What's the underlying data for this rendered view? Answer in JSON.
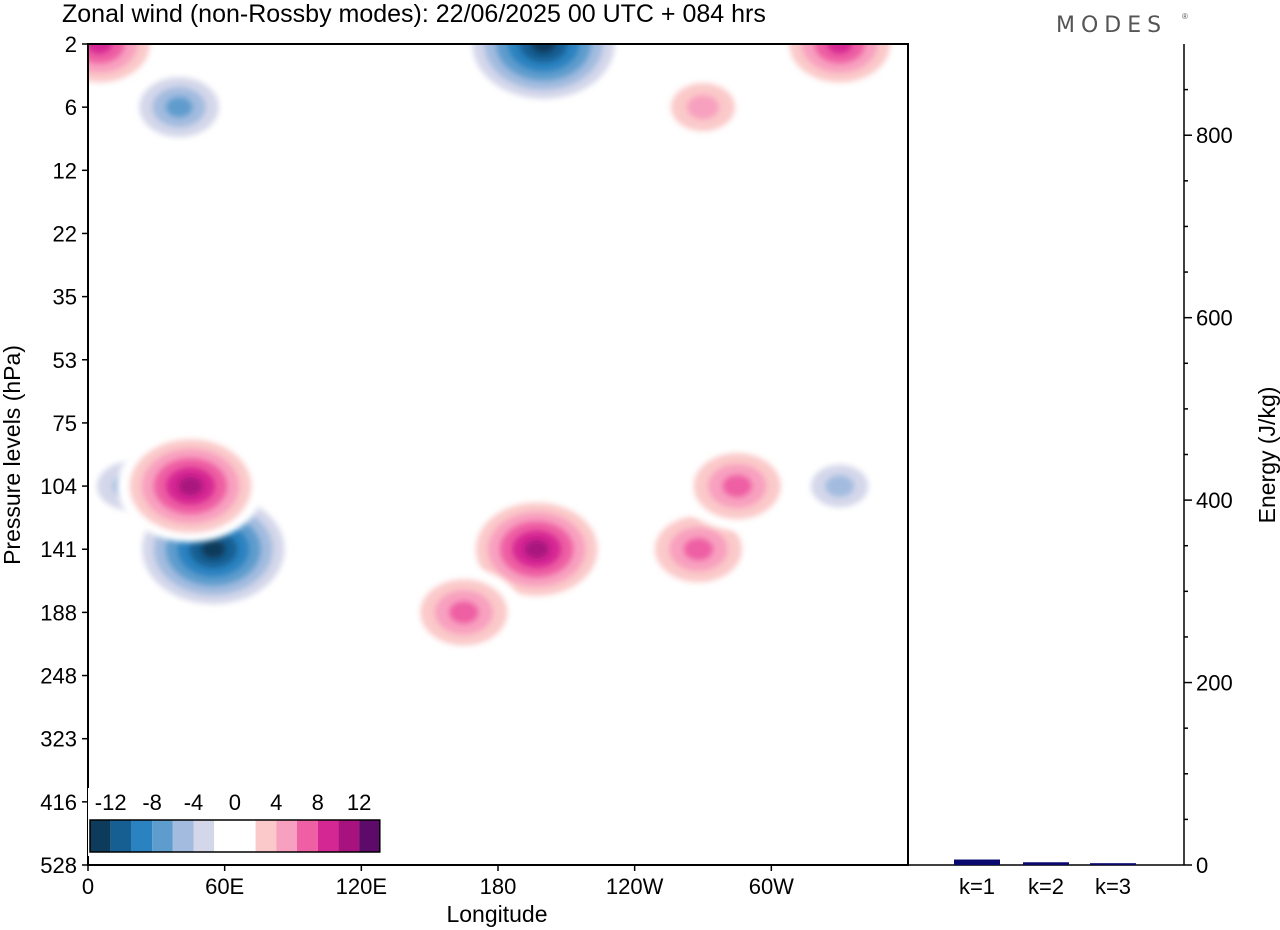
{
  "title": "Zonal wind (non-Rossby modes):  22/06/2025  00 UTC  + 084 hrs",
  "brand": "MODES",
  "chart_data": [
    {
      "type": "heatmap",
      "title": "Zonal wind (non-Rossby modes):  22/06/2025  00 UTC  + 084 hrs",
      "xlabel": "Longitude",
      "ylabel": "Pressure levels (hPa)",
      "x_ticks": [
        "0",
        "60E",
        "120E",
        "180",
        "120W",
        "60W"
      ],
      "x_tick_degrees": [
        0,
        60,
        120,
        180,
        240,
        300
      ],
      "x_range_degrees": [
        0,
        360
      ],
      "y_ticks": [
        "2",
        "6",
        "12",
        "22",
        "35",
        "53",
        "75",
        "104",
        "141",
        "188",
        "248",
        "323",
        "416",
        "528"
      ],
      "colorbar": {
        "labels": [
          "-12",
          "-8",
          "-4",
          "0",
          "4",
          "8",
          "12"
        ],
        "colors": [
          "#0d3b5c",
          "#155f93",
          "#2a82c0",
          "#5e9ccd",
          "#a2bbdf",
          "#d4d7ea",
          "#ffffff",
          "#ffffff",
          "#fbc9c9",
          "#f8a0bf",
          "#ee5fa3",
          "#d52793",
          "#a8127e",
          "#5d0a6b"
        ]
      },
      "features": [
        {
          "lon": 55,
          "level": "141",
          "value": -13
        },
        {
          "lon": 18,
          "level": "104",
          "value": -6
        },
        {
          "lon": 40,
          "level": "6",
          "value": -7
        },
        {
          "lon": 200,
          "level": "2",
          "value": -13
        },
        {
          "lon": 45,
          "level": "104",
          "value": 11
        },
        {
          "lon": 197,
          "level": "141",
          "value": 11
        },
        {
          "lon": 165,
          "level": "188",
          "value": 8
        },
        {
          "lon": 268,
          "level": "141",
          "value": 8
        },
        {
          "lon": 285,
          "level": "104",
          "value": 8
        },
        {
          "lon": 270,
          "level": "6",
          "value": 6
        },
        {
          "lon": 5,
          "level": "2",
          "value": 9
        },
        {
          "lon": 330,
          "level": "2",
          "value": 9
        },
        {
          "lon": 330,
          "level": "104",
          "value": -5
        }
      ]
    },
    {
      "type": "bar",
      "ylabel": "Energy (J/kg)",
      "categories": [
        "k=1",
        "k=2",
        "k=3"
      ],
      "values": [
        6,
        3,
        2
      ],
      "ylim": [
        0,
        900
      ],
      "y_ticks": [
        0,
        200,
        400,
        600,
        800
      ],
      "bar_color": "#08086e"
    }
  ]
}
